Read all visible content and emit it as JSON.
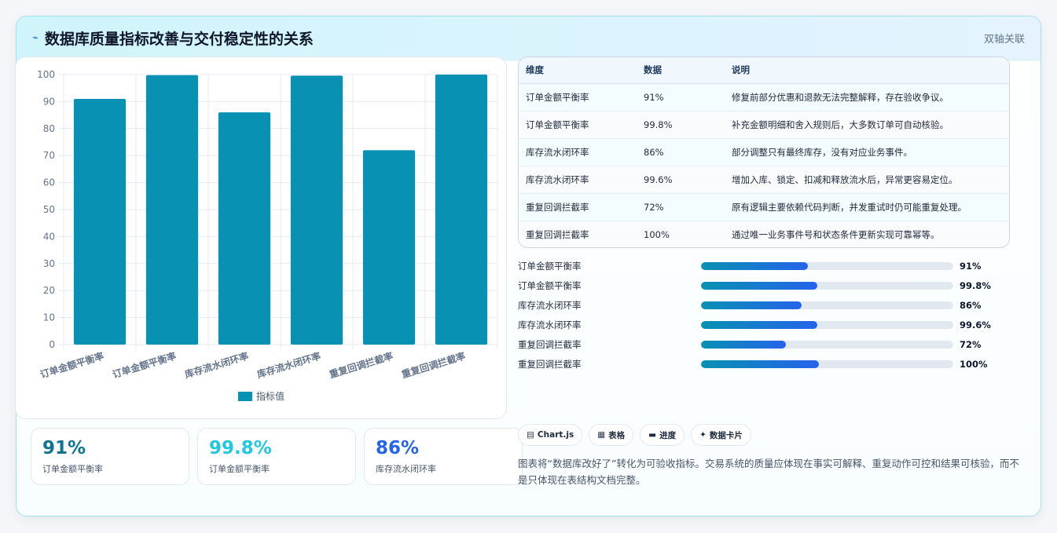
{
  "header": {
    "title": "数据库质量指标改善与交付稳定性的关系",
    "title_icon": "lightning-icon",
    "right_label": "双轴关联"
  },
  "chart_data": {
    "type": "bar",
    "categories": [
      "订单金额平衡率",
      "订单金额平衡率",
      "库存流水闭环率",
      "库存流水闭环率",
      "重复回调拦截率",
      "重复回调拦截率"
    ],
    "series": [
      {
        "name": "指标值",
        "values": [
          91,
          99.8,
          86,
          99.6,
          72,
          100
        ],
        "color": "#0891b2"
      }
    ],
    "ylim": [
      0,
      100
    ],
    "yticks": [
      0,
      10,
      20,
      30,
      40,
      50,
      60,
      70,
      80,
      90,
      100
    ],
    "grid": true,
    "legend": "bottom"
  },
  "stats": [
    {
      "value": "91%",
      "label": "订单金额平衡率",
      "color": "#0e7490"
    },
    {
      "value": "99.8%",
      "label": "订单金额平衡率",
      "color": "#22c8dd"
    },
    {
      "value": "86%",
      "label": "库存流水闭环率",
      "color": "#2563eb"
    }
  ],
  "table": {
    "headers": [
      "维度",
      "数据",
      "说明"
    ],
    "rows": [
      [
        "订单金额平衡率",
        "91%",
        "修复前部分优惠和退款无法完整解释，存在验收争议。"
      ],
      [
        "订单金额平衡率",
        "99.8%",
        "补充金额明细和舍入规则后，大多数订单可自动核验。"
      ],
      [
        "库存流水闭环率",
        "86%",
        "部分调整只有最终库存，没有对应业务事件。"
      ],
      [
        "库存流水闭环率",
        "99.6%",
        "增加入库、锁定、扣减和释放流水后，异常更容易定位。"
      ],
      [
        "重复回调拦截率",
        "72%",
        "原有逻辑主要依赖代码判断，并发重试时仍可能重复处理。"
      ],
      [
        "重复回调拦截率",
        "100%",
        "通过唯一业务事件号和状态条件更新实现可靠幂等。"
      ]
    ]
  },
  "progress": [
    {
      "label": "订单金额平衡率",
      "value": "91%",
      "fill": 0.425
    },
    {
      "label": "订单金额平衡率",
      "value": "99.8%",
      "fill": 0.46
    },
    {
      "label": "库存流水闭环率",
      "value": "86%",
      "fill": 0.4
    },
    {
      "label": "库存流水闭环率",
      "value": "99.6%",
      "fill": 0.46
    },
    {
      "label": "重复回调拦截率",
      "value": "72%",
      "fill": 0.335
    },
    {
      "label": "重复回调拦截率",
      "value": "100%",
      "fill": 0.467
    }
  ],
  "tags": [
    {
      "icon": "chart-icon",
      "glyph": "▤",
      "label": "Chart.js"
    },
    {
      "icon": "table-icon",
      "glyph": "▦",
      "label": "表格"
    },
    {
      "icon": "progress-icon",
      "glyph": "▬",
      "label": "进度"
    },
    {
      "icon": "sparkle-icon",
      "glyph": "✦",
      "label": "数据卡片"
    }
  ],
  "note": "图表将“数据库改好了”转化为可验收指标。交易系统的质量应体现在事实可解释、重复动作可控和结果可核验，而不是只体现在表结构文档完整。"
}
